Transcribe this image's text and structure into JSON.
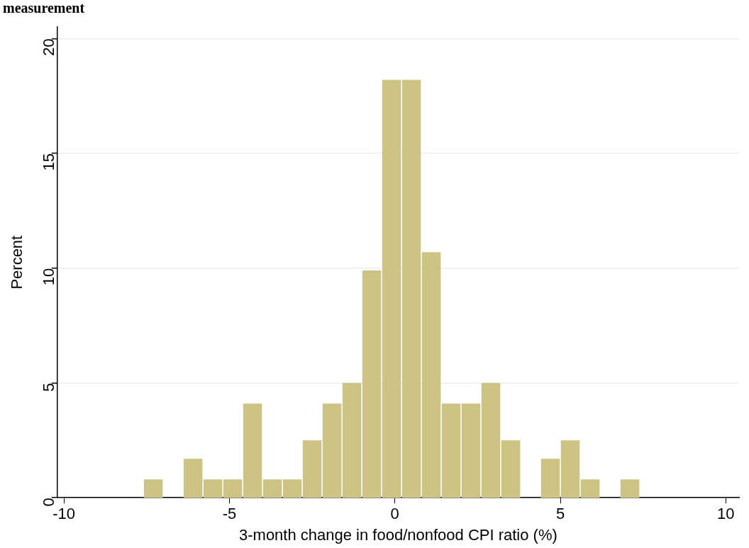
{
  "chart_data": {
    "type": "histogram",
    "title": "measurement",
    "xlabel": "3-month change in food/nonfood CPI ratio (%)",
    "ylabel": "Percent",
    "bins": [
      -7.6,
      -7.0,
      -6.4,
      -5.8,
      -5.2,
      -4.6,
      -4.0,
      -3.4,
      -2.8,
      -2.2,
      -1.6,
      -1.0,
      -0.4,
      0.2,
      0.8,
      1.4,
      2.0,
      2.6,
      3.2,
      3.8,
      4.4,
      5.0,
      5.6,
      6.2,
      6.8,
      7.4
    ],
    "values": [
      0.8,
      0,
      1.7,
      0.8,
      0.8,
      4.1,
      0.8,
      0.8,
      2.5,
      4.1,
      5.0,
      9.9,
      18.2,
      18.2,
      10.7,
      4.1,
      4.1,
      5.0,
      2.5,
      0,
      1.7,
      2.5,
      0.8,
      0,
      0.8
    ],
    "color": "#cdc383",
    "xlim": [
      -10.2,
      10.4
    ],
    "xticks": [
      -10,
      -5,
      0,
      5,
      10
    ],
    "ylim": [
      0,
      20.5
    ],
    "yticks": [
      0,
      5,
      10,
      15,
      20
    ],
    "grid": "y"
  }
}
